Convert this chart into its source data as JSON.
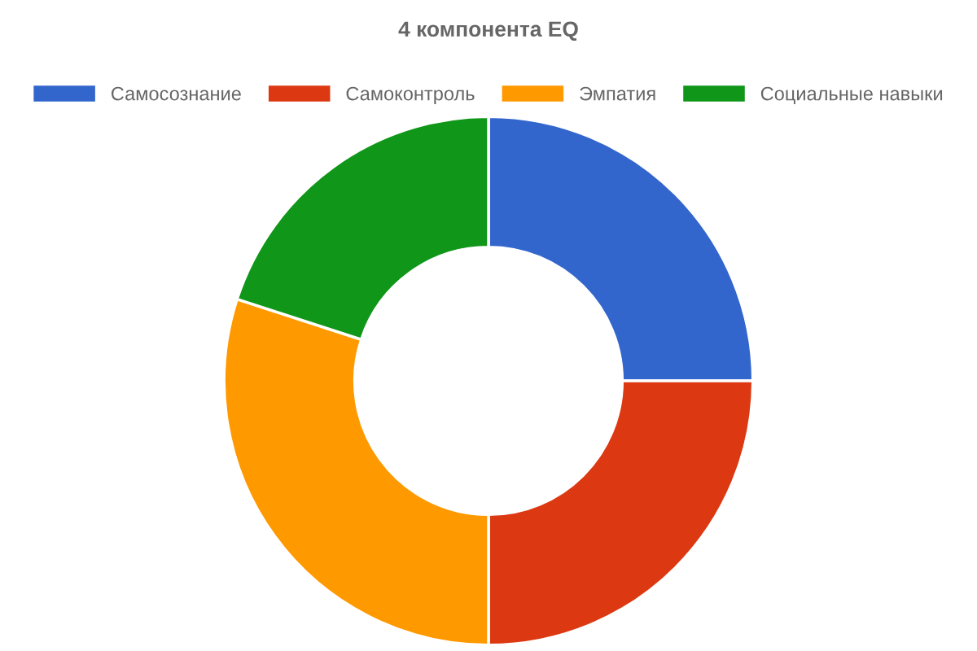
{
  "chart_data": {
    "type": "donut",
    "title": "4 компонента EQ",
    "categories": [
      "Самосознание",
      "Самоконтроль",
      "Эмпатия",
      "Социальные навыки"
    ],
    "values": [
      25,
      25,
      30,
      20
    ],
    "colors": [
      "#3366cc",
      "#dc3912",
      "#ff9900",
      "#109618"
    ],
    "legend": "top"
  }
}
